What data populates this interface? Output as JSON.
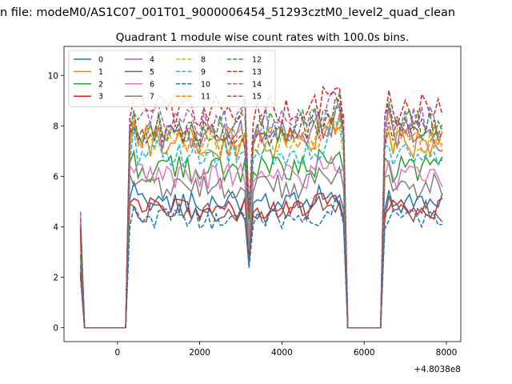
{
  "figure": {
    "suptitle": "n file: modeM0/AS1C07_001T01_9000006454_51293cztM0_level2_quad_clean"
  },
  "chart_data": {
    "type": "line",
    "title": "Quadrant 1 module wise count rates with 100.0s bins.",
    "xlabel": "",
    "ylabel": "",
    "offset_text": "+4.8038e8",
    "xlim": [
      -1300,
      8350
    ],
    "ylim": [
      -0.55,
      11.15
    ],
    "xticks": [
      0,
      2000,
      4000,
      6000,
      8000
    ],
    "xtick_labels": [
      "0",
      "2000",
      "4000",
      "6000",
      "8000"
    ],
    "yticks": [
      0,
      2,
      4,
      6,
      8,
      10
    ],
    "ytick_labels": [
      "0",
      "2",
      "4",
      "6",
      "8",
      "10"
    ],
    "grid": false,
    "legend_position": "upper-left",
    "legend_columns": 4,
    "x_start": -900,
    "x_step": 100,
    "bursts": [
      {
        "from": -900,
        "to": -900
      },
      {
        "from": 300,
        "to": 5500
      },
      {
        "from": 6500,
        "to": 7900
      }
    ],
    "dropout_x": [
      3200
    ],
    "series": [
      {
        "name": "0",
        "color": "#1f77b4",
        "style": "solid",
        "level": 5.0,
        "start": 2.5
      },
      {
        "name": "1",
        "color": "#ff7f0e",
        "style": "solid",
        "level": 7.3,
        "start": 3.3
      },
      {
        "name": "2",
        "color": "#2ca02c",
        "style": "solid",
        "level": 6.3,
        "start": 2.9
      },
      {
        "name": "3",
        "color": "#d62728",
        "style": "solid",
        "level": 4.7,
        "start": 2.2
      },
      {
        "name": "4",
        "color": "#9467bd",
        "style": "solid",
        "level": 7.6,
        "start": 4.4
      },
      {
        "name": "5",
        "color": "#8c564b",
        "style": "solid",
        "level": 4.6,
        "start": 2.1
      },
      {
        "name": "6",
        "color": "#e377c2",
        "style": "solid",
        "level": 6.0,
        "start": 4.1
      },
      {
        "name": "7",
        "color": "#7f7f7f",
        "style": "solid",
        "level": 5.6,
        "start": 3.5
      },
      {
        "name": "8",
        "color": "#bcbd22",
        "style": "dashed",
        "level": 7.4,
        "start": 3.6
      },
      {
        "name": "9",
        "color": "#17becf",
        "style": "dashed",
        "level": 7.0,
        "start": 3.8
      },
      {
        "name": "10",
        "color": "#1f77b4",
        "style": "dashed",
        "level": 4.3,
        "start": 2.0
      },
      {
        "name": "11",
        "color": "#ff7f0e",
        "style": "dashed",
        "level": 7.5,
        "start": 3.7
      },
      {
        "name": "12",
        "color": "#2ca02c",
        "style": "dashed",
        "level": 8.0,
        "start": 3.9
      },
      {
        "name": "13",
        "color": "#d62728",
        "style": "dashed",
        "level": 8.6,
        "start": 4.0
      },
      {
        "name": "14",
        "color": "#9467bd",
        "style": "dashed",
        "level": 8.2,
        "start": 4.6
      },
      {
        "name": "15",
        "color": "#8c564b",
        "style": "dashed",
        "level": 7.8,
        "start": 3.9
      }
    ]
  }
}
